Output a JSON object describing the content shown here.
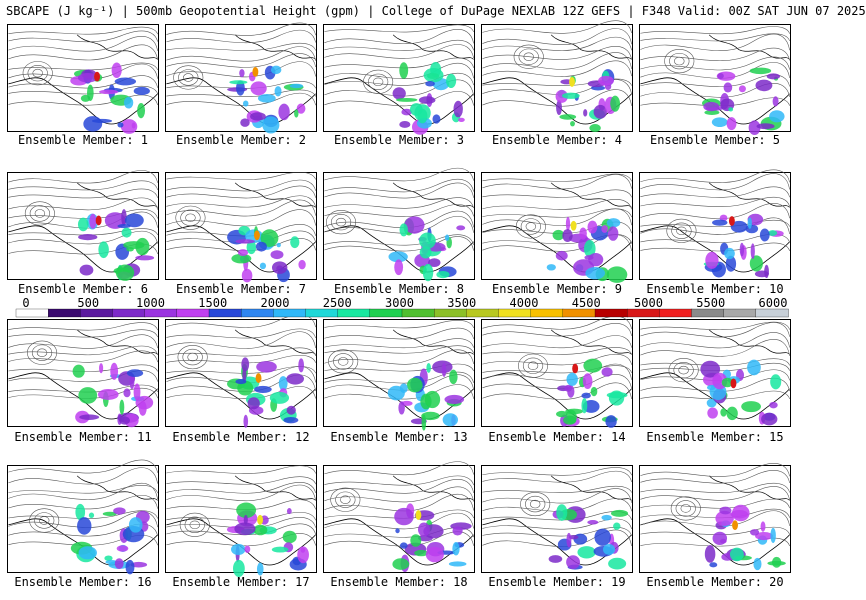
{
  "title": "SBCAPE (J kg⁻¹) | 500mb Geopotential Height (gpm) | College of DuPage NEXLAB 12Z GEFS | F348 Valid: 00Z SAT JUN 07 2025",
  "members": [
    {
      "label": "Ensemble Member: 1"
    },
    {
      "label": "Ensemble Member: 2"
    },
    {
      "label": "Ensemble Member: 3"
    },
    {
      "label": "Ensemble Member: 4"
    },
    {
      "label": "Ensemble Member: 5"
    },
    {
      "label": "Ensemble Member: 6"
    },
    {
      "label": "Ensemble Member: 7"
    },
    {
      "label": "Ensemble Member: 8"
    },
    {
      "label": "Ensemble Member: 9"
    },
    {
      "label": "Ensemble Member: 10"
    },
    {
      "label": "Ensemble Member: 11"
    },
    {
      "label": "Ensemble Member: 12"
    },
    {
      "label": "Ensemble Member: 13"
    },
    {
      "label": "Ensemble Member: 14"
    },
    {
      "label": "Ensemble Member: 15"
    },
    {
      "label": "Ensemble Member: 16"
    },
    {
      "label": "Ensemble Member: 17"
    },
    {
      "label": "Ensemble Member: 18"
    },
    {
      "label": "Ensemble Member: 19"
    },
    {
      "label": "Ensemble Member: 20"
    }
  ],
  "colorbar": {
    "ticks": [
      "0",
      "500",
      "1000",
      "1500",
      "2000",
      "2500",
      "3000",
      "3500",
      "4000",
      "4500",
      "5000",
      "5500",
      "6000"
    ],
    "min": 0,
    "max": 6000,
    "colors": [
      "#ffffff",
      "#3a0a6e",
      "#5b1a9e",
      "#7d2ac9",
      "#9b35e0",
      "#c040f0",
      "#2848d8",
      "#2f86f0",
      "#30b8f8",
      "#20d8d8",
      "#18e8a0",
      "#20d050",
      "#50c030",
      "#8cc028",
      "#b8c820",
      "#f0e020",
      "#f8c000",
      "#f09000",
      "#b80000",
      "#d81818",
      "#f02020",
      "#8a8a8a",
      "#a8a8a8",
      "#c8d0d8"
    ]
  }
}
